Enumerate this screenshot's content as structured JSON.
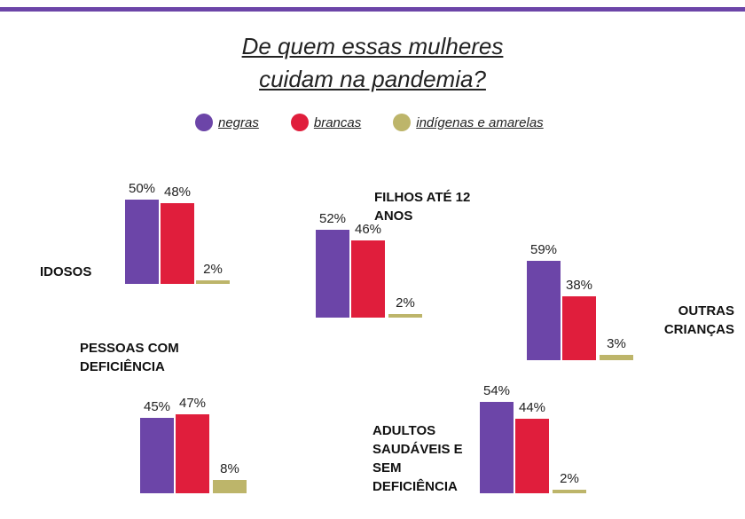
{
  "chart_data": {
    "type": "bar",
    "title": "De quem essas mulheres cuidam na pandemia?",
    "categories": [
      "IDOSOS",
      "FILHOS ATÉ 12 ANOS",
      "OUTRAS CRIANÇAS",
      "PESSOAS COM DEFICIÊNCIA",
      "ADULTOS SAUDÁVEIS E SEM DEFICIÊNCIA"
    ],
    "series": [
      {
        "name": "negras",
        "color": "#6c45a8",
        "values": [
          50,
          52,
          59,
          45,
          54
        ],
        "value_labels": [
          "50%",
          "52%",
          "59%",
          "45%",
          "54%"
        ]
      },
      {
        "name": "brancas",
        "color": "#e01e3c",
        "values": [
          48,
          46,
          38,
          47,
          44
        ],
        "value_labels": [
          "48%",
          "46%",
          "38%",
          "47%",
          "44%"
        ]
      },
      {
        "name": "indígenas e amarelas",
        "color": "#bdb56a",
        "values": [
          2,
          2,
          3,
          8,
          2
        ],
        "value_labels": [
          "2%",
          "2%",
          "3%",
          "8%",
          "2%"
        ]
      }
    ]
  }
}
